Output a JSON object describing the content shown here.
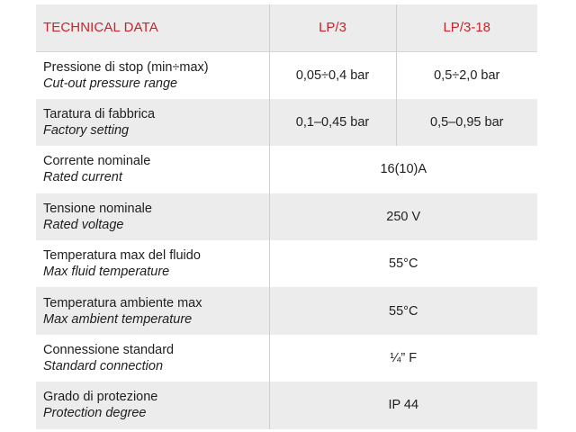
{
  "header": {
    "title": "TECHNICAL DATA",
    "model_a": "LP/3",
    "model_b": "LP/3-18"
  },
  "rows": [
    {
      "it": "Pressione di stop (min÷max)",
      "en": "Cut-out pressure range",
      "a": "0,05÷0,4 bar",
      "b": "0,5÷2,0 bar"
    },
    {
      "it": "Taratura di fabbrica",
      "en": "Factory setting",
      "a": "0,1–0,45 bar",
      "b": "0,5–0,95 bar"
    },
    {
      "it": "Corrente nominale",
      "en": "Rated current",
      "value": "16(10)A"
    },
    {
      "it": "Tensione nominale",
      "en": "Rated voltage",
      "value": "250 V"
    },
    {
      "it": "Temperatura max del fluido",
      "en": "Max fluid temperature",
      "value": "55°C"
    },
    {
      "it": "Temperatura ambiente max",
      "en": "Max ambient temperature",
      "value": "55°C"
    },
    {
      "it": "Connessione standard",
      "en": "Standard connection",
      "value": "¼” F"
    },
    {
      "it": "Grado di protezione",
      "en": "Protection degree",
      "value": "IP 44"
    }
  ],
  "colors": {
    "header_text": "#c9242b",
    "shaded_row": "#ececec"
  }
}
